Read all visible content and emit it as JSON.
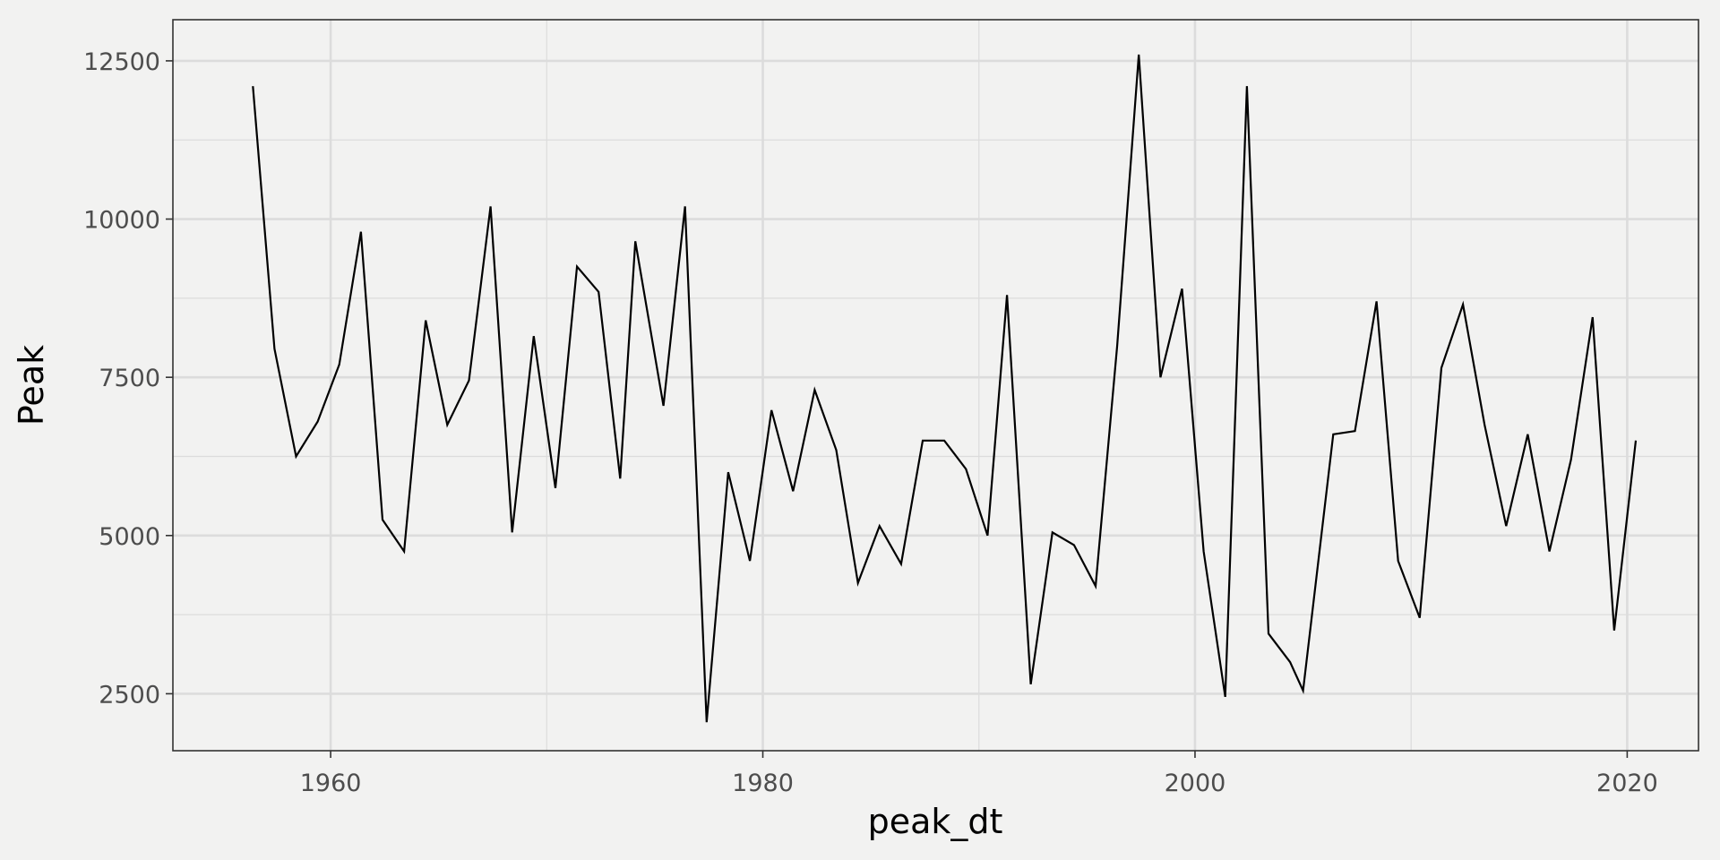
{
  "chart_data": {
    "type": "line",
    "title": "",
    "xlabel": "peak_dt",
    "ylabel": "Peak",
    "xlim": [
      1952.7,
      2023.3
    ],
    "ylim": [
      1600,
      13150
    ],
    "x_ticks": [
      1960,
      1980,
      2000,
      2020
    ],
    "x_tick_labels": [
      "1960",
      "1980",
      "2000",
      "2020"
    ],
    "y_ticks": [
      2500,
      5000,
      7500,
      10000,
      12500
    ],
    "y_tick_labels": [
      "2500",
      "5000",
      "7500",
      "10000",
      "12500"
    ],
    "grid": true,
    "legend": "none",
    "colors": {
      "background": "#f2f2f1",
      "panel": "#f2f2f1",
      "grid": "#dcdcdc",
      "line": "#000000",
      "border": "#333333"
    },
    "series": [
      {
        "name": "Peak",
        "x": [
          1956.4,
          1957.4,
          1958.4,
          1959.4,
          1960.4,
          1961.4,
          1962.4,
          1963.4,
          1964.4,
          1965.4,
          1966.4,
          1967.4,
          1968.4,
          1969.4,
          1970.4,
          1971.4,
          1972.4,
          1973.4,
          1974.1,
          1975.4,
          1976.4,
          1977.4,
          1978.4,
          1979.4,
          1980.4,
          1981.4,
          1982.4,
          1983.4,
          1984.4,
          1985.4,
          1986.4,
          1987.4,
          1988.4,
          1989.4,
          1990.4,
          1991.3,
          1992.4,
          1993.4,
          1994.4,
          1995.4,
          1996.4,
          1997.4,
          1998.4,
          1999.4,
          2000.4,
          2001.4,
          2002.4,
          2003.4,
          2004.4,
          2005.0,
          2006.4,
          2007.4,
          2008.4,
          2009.4,
          2010.4,
          2011.4,
          2012.4,
          2013.4,
          2014.4,
          2015.4,
          2016.4,
          2017.4,
          2018.4,
          2019.4,
          2020.4
        ],
        "values": [
          12100,
          7950,
          6250,
          6800,
          7700,
          9800,
          5250,
          4750,
          8400,
          6750,
          7450,
          10200,
          5050,
          8150,
          5750,
          9250,
          8850,
          5900,
          9650,
          7050,
          10200,
          2050,
          6000,
          4600,
          6980,
          5700,
          7300,
          6350,
          4250,
          5150,
          4550,
          6500,
          6500,
          6050,
          5000,
          8800,
          2650,
          5050,
          4850,
          4200,
          8000,
          12600,
          7500,
          8900,
          4750,
          2450,
          12100,
          3450,
          3000,
          2550,
          6600,
          6650,
          8700,
          4600,
          3700,
          7650,
          8650,
          6750,
          5150,
          6600,
          4750,
          6200,
          8450,
          3500,
          6500
        ]
      }
    ]
  }
}
